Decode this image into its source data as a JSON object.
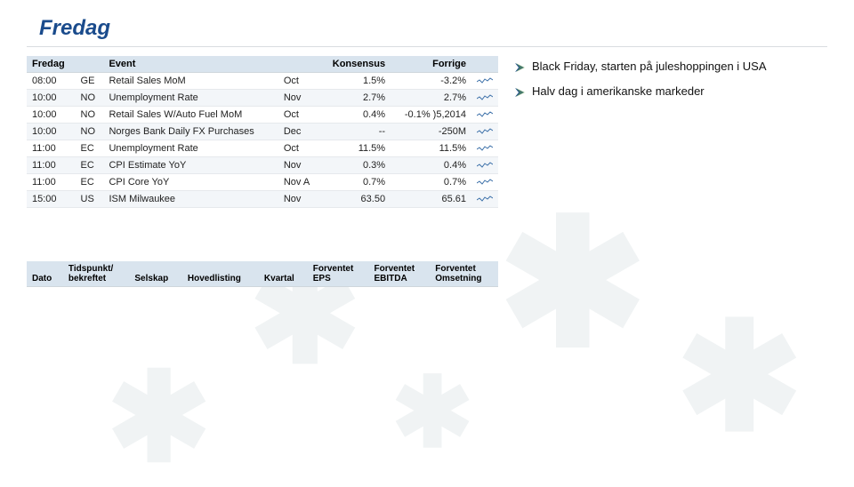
{
  "page_title": "Fredag",
  "colors": {
    "title": "#1a4b8c",
    "header_bg": "#d9e4ee",
    "row_alt_bg": "#f3f6f9",
    "row_border": "#e6e9ec",
    "bullet_blue": "#1a4b8c",
    "bullet_green": "#6da34d",
    "spark_line": "#3a6fa8",
    "text": "#111111"
  },
  "econ_table": {
    "headers": {
      "day": "Fredag",
      "event": "Event",
      "period": "",
      "konsensus": "Konsensus",
      "forrige": "Forrige",
      "spark": ""
    },
    "rows": [
      {
        "time": "08:00",
        "cc": "GE",
        "event": "Retail Sales MoM",
        "period": "Oct",
        "konsensus": "1.5%",
        "forrige": "-3.2%"
      },
      {
        "time": "10:00",
        "cc": "NO",
        "event": "Unemployment Rate",
        "period": "Nov",
        "konsensus": "2.7%",
        "forrige": "2.7%"
      },
      {
        "time": "10:00",
        "cc": "NO",
        "event": "Retail Sales W/Auto Fuel MoM",
        "period": "Oct",
        "konsensus": "0.4%",
        "forrige": "-0.1% )5,2014"
      },
      {
        "time": "10:00",
        "cc": "NO",
        "event": "Norges Bank Daily FX Purchases",
        "period": "Dec",
        "konsensus": "--",
        "forrige": "-250M"
      },
      {
        "time": "11:00",
        "cc": "EC",
        "event": "Unemployment Rate",
        "period": "Oct",
        "konsensus": "11.5%",
        "forrige": "11.5%"
      },
      {
        "time": "11:00",
        "cc": "EC",
        "event": "CPI Estimate YoY",
        "period": "Nov",
        "konsensus": "0.3%",
        "forrige": "0.4%"
      },
      {
        "time": "11:00",
        "cc": "EC",
        "event": "CPI Core YoY",
        "period": "Nov A",
        "konsensus": "0.7%",
        "forrige": "0.7%"
      },
      {
        "time": "15:00",
        "cc": "US",
        "event": "ISM Milwaukee",
        "period": "Nov",
        "konsensus": "63.50",
        "forrige": "65.61"
      }
    ]
  },
  "bullets": [
    "Black Friday, starten på juleshoppingen i USA",
    "Halv dag i amerikanske markeder"
  ],
  "company_table": {
    "headers": {
      "dato": "Dato",
      "tidspunkt_l1": "Tidspunkt/",
      "tidspunkt_l2": "bekreftet",
      "selskap": "Selskap",
      "hovedlisting": "Hovedlisting",
      "kvartal": "Kvartal",
      "eps_l1": "Forventet",
      "eps_l2": "EPS",
      "ebitda_l1": "Forventet",
      "ebitda_l2": "EBITDA",
      "oms_l1": "Forventet",
      "oms_l2": "Omsetning"
    }
  }
}
